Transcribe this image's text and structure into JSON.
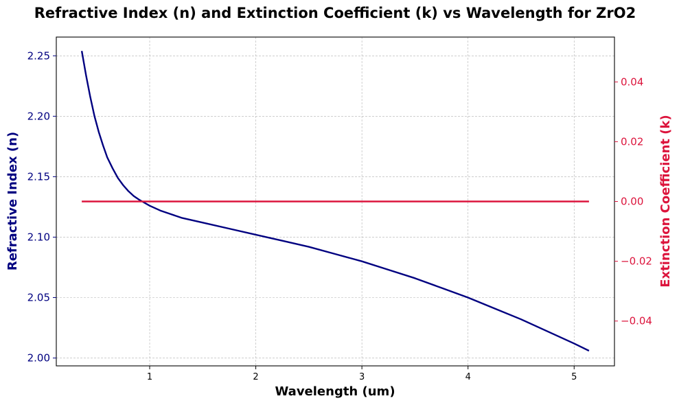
{
  "chart_data": {
    "type": "line",
    "title": "Refractive Index (n) and Extinction Coefficient (k) vs Wavelength for ZrO2",
    "xlabel": "Wavelength (um)",
    "ylabel_left": "Refractive Index (n)",
    "ylabel_right": "Extinction Coefficient (k)",
    "xlim": [
      0.12,
      5.38
    ],
    "ylim_left": [
      1.9935,
      2.2655
    ],
    "ylim_right": [
      -0.055,
      0.055
    ],
    "x_ticks": [
      1,
      2,
      3,
      4,
      5
    ],
    "y_left_ticks": [
      2.0,
      2.05,
      2.1,
      2.15,
      2.2,
      2.25
    ],
    "y_right_ticks": [
      -0.04,
      -0.02,
      0.0,
      0.02,
      0.04
    ],
    "x_tick_labels": [
      "1",
      "2",
      "3",
      "4",
      "5"
    ],
    "y_left_tick_labels": [
      "2.00",
      "2.05",
      "2.10",
      "2.15",
      "2.20",
      "2.25"
    ],
    "y_right_tick_labels": [
      "−0.04",
      "−0.02",
      "0.00",
      "0.02",
      "0.04"
    ],
    "grid": true,
    "colors": {
      "n": "#000080",
      "k": "#dc143c"
    },
    "series": [
      {
        "axis": "left",
        "x": [
          0.36,
          0.4,
          0.44,
          0.48,
          0.52,
          0.56,
          0.6,
          0.65,
          0.7,
          0.75,
          0.8,
          0.85,
          0.9,
          1.0,
          1.1,
          1.2,
          1.3,
          1.5,
          1.75,
          2.0,
          2.25,
          2.5,
          2.75,
          3.0,
          3.25,
          3.5,
          3.75,
          4.0,
          4.25,
          4.5,
          4.75,
          5.0,
          5.14
        ],
        "values": [
          2.254,
          2.234,
          2.216,
          2.2,
          2.187,
          2.176,
          2.166,
          2.157,
          2.149,
          2.143,
          2.138,
          2.134,
          2.131,
          2.126,
          2.122,
          2.119,
          2.116,
          2.112,
          2.107,
          2.102,
          2.097,
          2.092,
          2.086,
          2.08,
          2.073,
          2.066,
          2.058,
          2.05,
          2.041,
          2.032,
          2.022,
          2.012,
          2.006
        ]
      },
      {
        "axis": "right",
        "x": [
          0.36,
          5.14
        ],
        "values": [
          0.0,
          0.0
        ]
      }
    ]
  }
}
